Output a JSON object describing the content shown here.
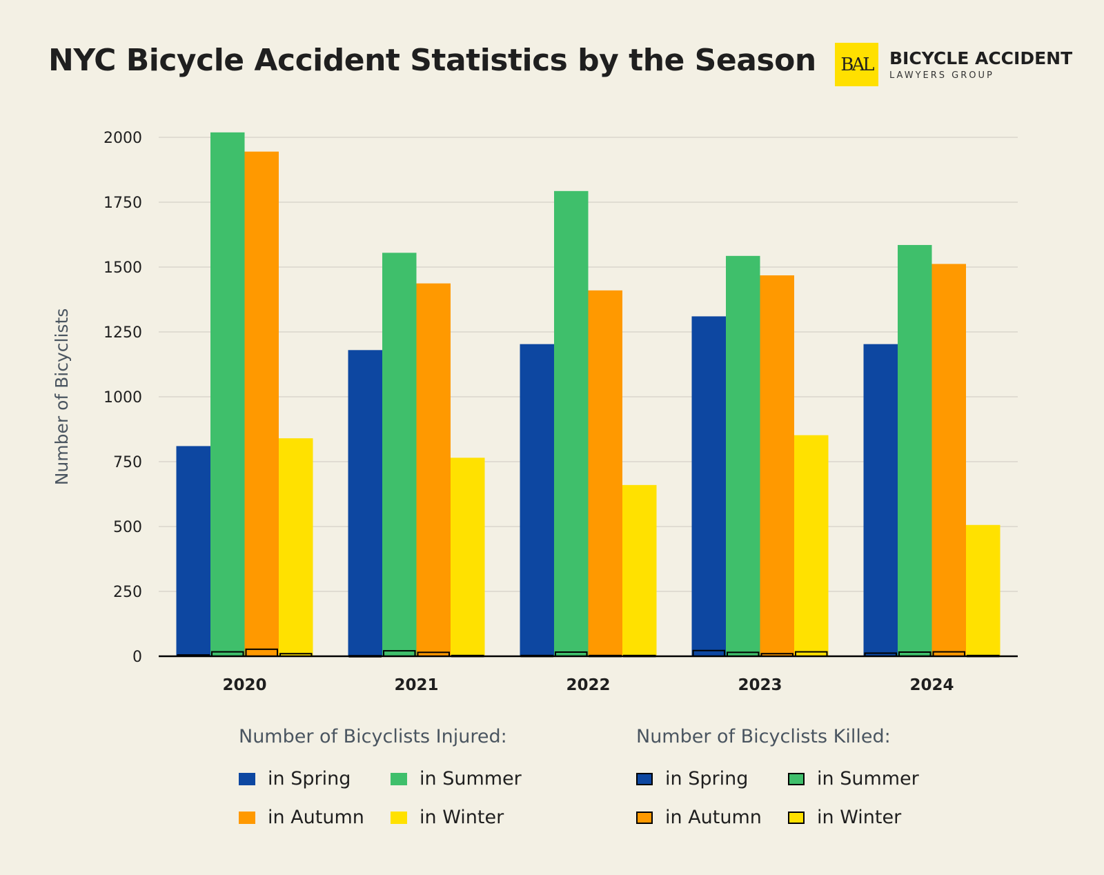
{
  "header": {
    "title": "NYC Bicycle Accident Statistics by the Season",
    "logo_mark": "BAL",
    "logo_line1": "BICYCLE ACCIDENT",
    "logo_line2": "LAWYERS GROUP"
  },
  "chart_data": {
    "type": "bar",
    "title": "NYC Bicycle Accident Statistics by the Season",
    "xlabel": "",
    "ylabel": "Number of Bicyclists",
    "ylim": [
      0,
      2000
    ],
    "yticks": [
      0,
      250,
      500,
      750,
      1000,
      1250,
      1500,
      1750,
      2000
    ],
    "grid": true,
    "legend": "bottom",
    "categories": [
      "2020",
      "2021",
      "2022",
      "2023",
      "2024"
    ],
    "legend_groups": [
      "Number of Bicyclists Injured:",
      "Number of Bicyclists Killed:"
    ],
    "series": [
      {
        "name": "in Spring",
        "group": "injured",
        "color": "#0d47a1",
        "values": [
          810,
          1180,
          1203,
          1310,
          1203
        ]
      },
      {
        "name": "in Summer",
        "group": "injured",
        "color": "#3fbf6b",
        "values": [
          2019,
          1555,
          1793,
          1543,
          1585
        ]
      },
      {
        "name": "in Autumn",
        "group": "injured",
        "color": "#ff9900",
        "values": [
          1945,
          1437,
          1410,
          1468,
          1512
        ]
      },
      {
        "name": "in Winter",
        "group": "injured",
        "color": "#ffe100",
        "values": [
          840,
          765,
          660,
          852,
          506
        ]
      },
      {
        "name": "in Spring",
        "group": "killed",
        "color": "#0d47a1",
        "values": [
          5,
          2,
          3,
          22,
          12
        ]
      },
      {
        "name": "in Summer",
        "group": "killed",
        "color": "#3fbf6b",
        "values": [
          17,
          21,
          16,
          15,
          16
        ]
      },
      {
        "name": "in Autumn",
        "group": "killed",
        "color": "#ff9900",
        "values": [
          27,
          15,
          3,
          10,
          17
        ]
      },
      {
        "name": "in Winter",
        "group": "killed",
        "color": "#ffe100",
        "values": [
          10,
          3,
          3,
          17,
          3
        ]
      }
    ]
  }
}
